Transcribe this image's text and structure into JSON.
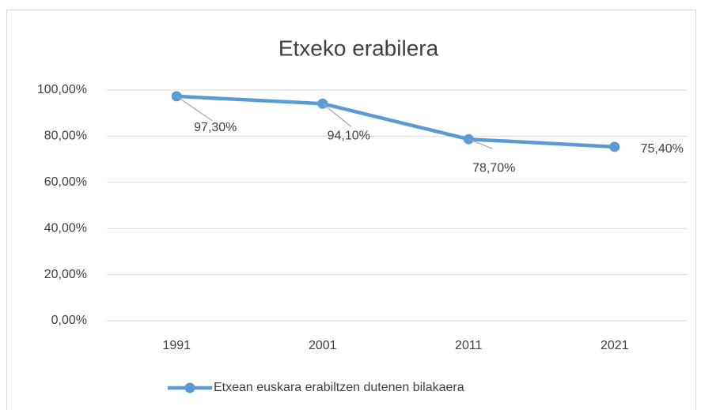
{
  "chart_data": {
    "type": "line",
    "title": "Etxeko erabilera",
    "categories": [
      "1991",
      "2001",
      "2011",
      "2021"
    ],
    "series": [
      {
        "name": "Etxean euskara erabiltzen dutenen bilakaera",
        "color": "#5b9bd5",
        "values": [
          97.3,
          94.1,
          78.7,
          75.4
        ],
        "value_labels": [
          "97,30%",
          "94,10%",
          "78,70%",
          "75,40%"
        ]
      }
    ],
    "ylim": [
      0,
      100
    ],
    "yticks": [
      {
        "value": 0,
        "label": "0,00%"
      },
      {
        "value": 20,
        "label": "20,00%"
      },
      {
        "value": 40,
        "label": "40,00%"
      },
      {
        "value": 60,
        "label": "60,00%"
      },
      {
        "value": 80,
        "label": "80,00%"
      },
      {
        "value": 100,
        "label": "100,00%"
      }
    ],
    "grid": true,
    "legend": "bottom"
  }
}
